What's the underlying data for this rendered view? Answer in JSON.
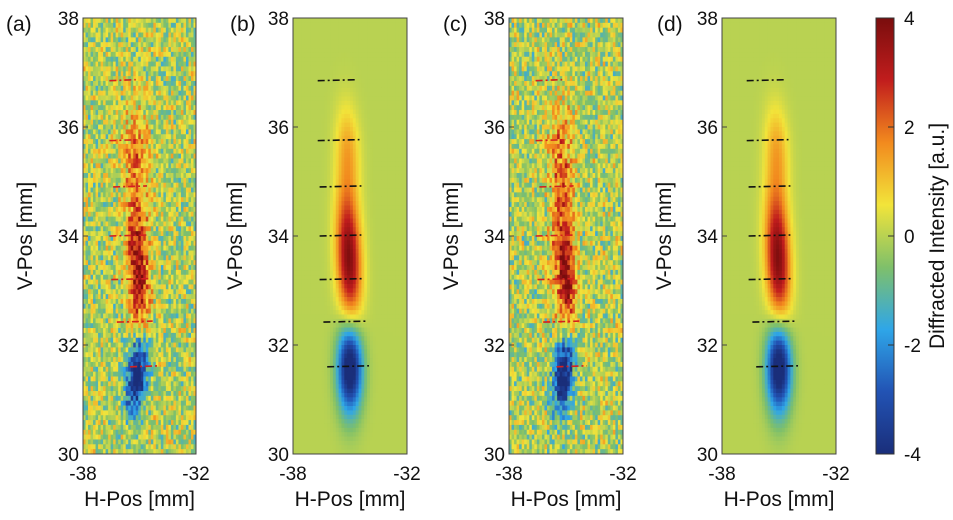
{
  "colors": {
    "background": "#7fc06a",
    "colormap": [
      "#1a2e7a",
      "#2253b4",
      "#2fa6e8",
      "#7fc06a",
      "#f2e43a",
      "#f28a1e",
      "#c11d1d",
      "#7a0d0d"
    ],
    "line_red": "#d42020",
    "line_black": "#111111"
  },
  "chart_data": [
    {
      "type": "heatmap",
      "panel_label": "(a)",
      "variant": "measured",
      "xlabel": "H-Pos [mm]",
      "ylabel": "V-Pos [mm]",
      "xlim": [
        -38,
        -32
      ],
      "ylim": [
        30,
        38
      ],
      "x_ticks": [
        "-38",
        "-32"
      ],
      "y_ticks": [
        "30",
        "32",
        "34",
        "36",
        "38"
      ],
      "noise": true,
      "line_style": "red-dashdot",
      "segments": [
        {
          "v": 36.85,
          "h": [
            -36.6,
            -35.2
          ]
        },
        {
          "v": 35.75,
          "h": [
            -36.6,
            -35.0
          ]
        },
        {
          "v": 34.9,
          "h": [
            -36.4,
            -34.6
          ]
        },
        {
          "v": 34.0,
          "h": [
            -36.6,
            -34.5
          ]
        },
        {
          "v": 33.2,
          "h": [
            -36.5,
            -34.4
          ]
        },
        {
          "v": 32.42,
          "h": [
            -36.2,
            -34.3
          ]
        },
        {
          "v": 31.6,
          "h": [
            -35.5,
            -33.9
          ]
        }
      ]
    },
    {
      "type": "heatmap",
      "panel_label": "(b)",
      "variant": "model",
      "xlabel": "H-Pos [mm]",
      "ylabel": "V-Pos [mm]",
      "xlim": [
        -38,
        -32
      ],
      "ylim": [
        30,
        38
      ],
      "x_ticks": [
        "-38",
        "-32"
      ],
      "y_ticks": [
        "30",
        "32",
        "34",
        "36",
        "38"
      ],
      "noise": false,
      "line_style": "black-dashdot",
      "segments": [
        {
          "v": 36.85,
          "h": [
            -36.7,
            -34.6
          ]
        },
        {
          "v": 35.75,
          "h": [
            -36.7,
            -34.5
          ]
        },
        {
          "v": 34.9,
          "h": [
            -36.6,
            -34.4
          ]
        },
        {
          "v": 34.0,
          "h": [
            -36.6,
            -34.4
          ]
        },
        {
          "v": 33.2,
          "h": [
            -36.6,
            -34.3
          ]
        },
        {
          "v": 32.42,
          "h": [
            -36.4,
            -34.1
          ]
        },
        {
          "v": 31.6,
          "h": [
            -36.2,
            -34.0
          ]
        }
      ]
    },
    {
      "type": "heatmap",
      "panel_label": "(c)",
      "variant": "measured",
      "xlabel": "H-Pos [mm]",
      "ylabel": "V-Pos [mm]",
      "xlim": [
        -38,
        -32
      ],
      "ylim": [
        30,
        38
      ],
      "x_ticks": [
        "-38",
        "-32"
      ],
      "y_ticks": [
        "30",
        "32",
        "34",
        "36",
        "38"
      ],
      "noise": true,
      "line_style": "red-dashdot",
      "segments": [
        {
          "v": 36.85,
          "h": [
            -36.6,
            -35.2
          ]
        },
        {
          "v": 35.75,
          "h": [
            -36.6,
            -35.0
          ]
        },
        {
          "v": 34.9,
          "h": [
            -36.4,
            -34.6
          ]
        },
        {
          "v": 34.0,
          "h": [
            -36.6,
            -34.5
          ]
        },
        {
          "v": 33.2,
          "h": [
            -36.5,
            -34.4
          ]
        },
        {
          "v": 32.42,
          "h": [
            -36.2,
            -34.3
          ]
        },
        {
          "v": 31.6,
          "h": [
            -35.5,
            -33.9
          ]
        }
      ]
    },
    {
      "type": "heatmap",
      "panel_label": "(d)",
      "variant": "model",
      "xlabel": "H-Pos [mm]",
      "ylabel": "V-Pos [mm]",
      "xlim": [
        -38,
        -32
      ],
      "ylim": [
        30,
        38
      ],
      "x_ticks": [
        "-38",
        "-32"
      ],
      "y_ticks": [
        "30",
        "32",
        "34",
        "36",
        "38"
      ],
      "noise": false,
      "line_style": "black-dashdot",
      "segments": [
        {
          "v": 36.85,
          "h": [
            -36.7,
            -34.6
          ]
        },
        {
          "v": 35.75,
          "h": [
            -36.7,
            -34.5
          ]
        },
        {
          "v": 34.9,
          "h": [
            -36.6,
            -34.4
          ]
        },
        {
          "v": 34.0,
          "h": [
            -36.6,
            -34.4
          ]
        },
        {
          "v": 33.2,
          "h": [
            -36.6,
            -34.3
          ]
        },
        {
          "v": 32.42,
          "h": [
            -36.4,
            -34.1
          ]
        },
        {
          "v": 31.6,
          "h": [
            -36.2,
            -34.0
          ]
        }
      ]
    }
  ],
  "colorbar": {
    "label": "Diffracted Intensity [a.u.]",
    "ticks": [
      {
        "value": 4,
        "label": "4"
      },
      {
        "value": 2,
        "label": "2"
      },
      {
        "value": 0,
        "label": "0"
      },
      {
        "value": -2,
        "label": "-2"
      },
      {
        "value": -4,
        "label": "-4"
      }
    ],
    "range": [
      -4,
      4
    ]
  }
}
